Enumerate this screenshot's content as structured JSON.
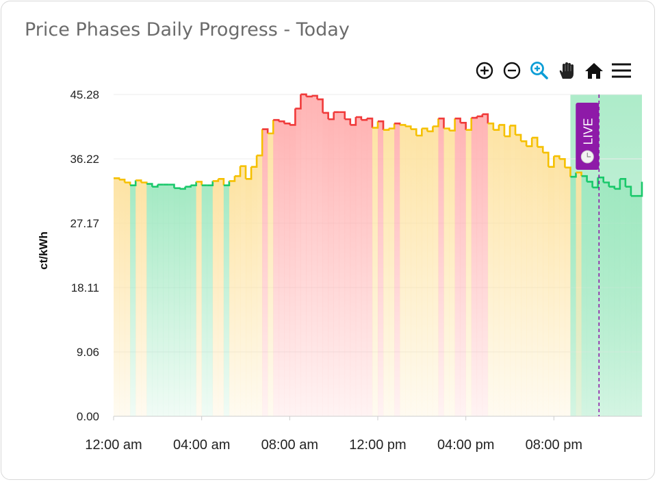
{
  "card": {
    "title": "Price Phases Daily Progress - Today"
  },
  "toolbar": {
    "items": [
      {
        "icon": "zoom-in-icon"
      },
      {
        "icon": "zoom-out-icon"
      },
      {
        "icon": "zoom-select-icon",
        "active": true
      },
      {
        "icon": "pan-hand-icon"
      },
      {
        "icon": "home-reset-icon"
      },
      {
        "icon": "menu-icon"
      }
    ],
    "active_color": "#0b9dd6"
  },
  "colors": {
    "low": "#19c86a",
    "medium": "#f5c000",
    "high": "#f03a3a",
    "low_fill": "#9fe8c0",
    "medium_fill": "#fde2a0",
    "high_fill": "#ffb0b0",
    "live": "#8e1aa8"
  },
  "chart_data": {
    "type": "area",
    "step": "15 min",
    "ylabel": "ct/kWh",
    "ylim": [
      0,
      45.28
    ],
    "yticks": [
      "0.00",
      "9.06",
      "18.11",
      "27.17",
      "36.22",
      "45.28"
    ],
    "xlim_hours": [
      0,
      24
    ],
    "xticks": [
      {
        "hour": 0,
        "label": "12:00 am"
      },
      {
        "hour": 4,
        "label": "04:00 am"
      },
      {
        "hour": 8,
        "label": "08:00 am"
      },
      {
        "hour": 12,
        "label": "12:00 pm"
      },
      {
        "hour": 16,
        "label": "04:00 pm"
      },
      {
        "hour": 20,
        "label": "08:00 pm"
      }
    ],
    "grid": true,
    "values": [
      33.5,
      33.3,
      32.9,
      32.5,
      33.2,
      32.9,
      32.7,
      32.3,
      32.6,
      32.6,
      32.6,
      32.1,
      32.0,
      32.3,
      32.5,
      33.0,
      32.5,
      32.5,
      33.1,
      33.4,
      32.5,
      33.1,
      33.8,
      35.2,
      33.4,
      35.1,
      36.7,
      40.4,
      39.8,
      41.7,
      41.5,
      41.2,
      41.0,
      43.3,
      45.3,
      45.0,
      45.1,
      44.6,
      42.7,
      41.8,
      42.8,
      42.8,
      41.8,
      41.0,
      42.1,
      41.7,
      41.9,
      40.6,
      41.5,
      40.3,
      40.5,
      41.2,
      41.0,
      40.8,
      40.4,
      39.5,
      40.5,
      40.1,
      40.8,
      41.9,
      40.5,
      40.2,
      41.9,
      41.3,
      40.3,
      42.0,
      42.2,
      42.5,
      41.2,
      40.3,
      41.0,
      39.4,
      40.9,
      39.6,
      38.7,
      38.0,
      39.2,
      37.9,
      37.1,
      35.1,
      36.6,
      36.2,
      35.0,
      33.7,
      34.3,
      33.8,
      33.0,
      32.2,
      33.6,
      32.9,
      32.3,
      32.0,
      33.4,
      32.3,
      31.0,
      31.0
    ],
    "end_value": 33.0,
    "phases": [
      "medium",
      "medium",
      "medium",
      "low",
      "medium",
      "medium",
      "low",
      "low",
      "low",
      "low",
      "low",
      "low",
      "low",
      "low",
      "low",
      "medium",
      "low",
      "low",
      "medium",
      "medium",
      "low",
      "medium",
      "medium",
      "medium",
      "medium",
      "medium",
      "medium",
      "high",
      "medium",
      "high",
      "high",
      "high",
      "high",
      "high",
      "high",
      "high",
      "high",
      "high",
      "high",
      "high",
      "high",
      "high",
      "high",
      "high",
      "high",
      "high",
      "high",
      "medium",
      "high",
      "medium",
      "medium",
      "high",
      "medium",
      "medium",
      "medium",
      "medium",
      "medium",
      "medium",
      "medium",
      "high",
      "medium",
      "medium",
      "high",
      "high",
      "medium",
      "high",
      "high",
      "high",
      "medium",
      "medium",
      "medium",
      "medium",
      "medium",
      "medium",
      "medium",
      "medium",
      "medium",
      "medium",
      "medium",
      "medium",
      "medium",
      "medium",
      "medium",
      "low",
      "medium",
      "low",
      "low",
      "low",
      "low",
      "low",
      "low",
      "low",
      "low",
      "low",
      "low",
      "low"
    ],
    "highlight_band_hours": [
      20.75,
      24
    ],
    "live_marker": {
      "label": "LIVE",
      "hour": 22.05,
      "icon": "clock-icon"
    }
  }
}
